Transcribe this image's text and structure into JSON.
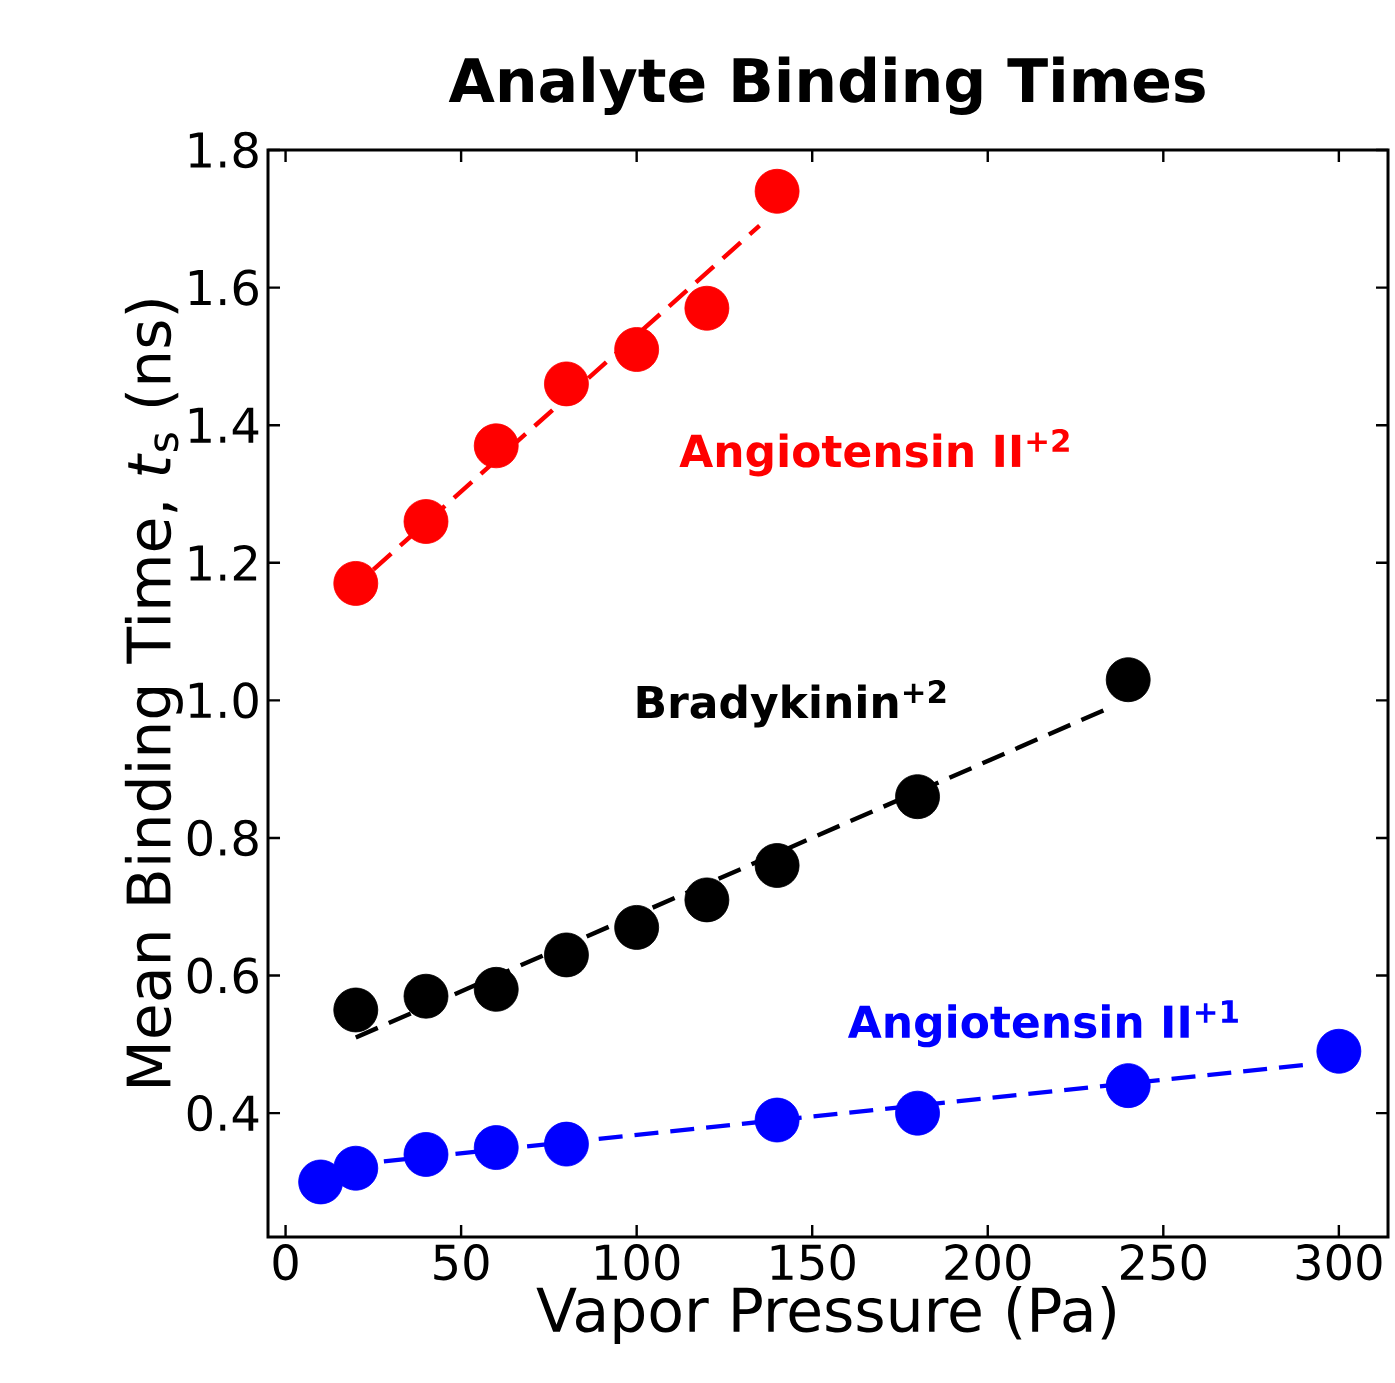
{
  "chart_data": {
    "type": "scatter",
    "title": "Analyte Binding Times",
    "xlabel": "Vapor Pressure (Pa)",
    "ylabel": "Mean Binding Time, *t*$_{s}$ (ns)",
    "xlim": [
      -5,
      314
    ],
    "ylim": [
      0.22,
      1.8
    ],
    "xticks": [
      0,
      50,
      100,
      150,
      200,
      250,
      300
    ],
    "yticks": [
      0.4,
      0.6,
      0.8,
      {
        "value": 1.0,
        "label": "1.0"
      },
      1.2,
      1.4,
      1.6,
      1.8
    ],
    "grid": false,
    "legend": false,
    "series": [
      {
        "name": "Angiotensin II$^{+2}$",
        "marker": "circle",
        "color": "#ff0000",
        "x": [
          20,
          40,
          60,
          80,
          100,
          120,
          140
        ],
        "values": [
          1.17,
          1.26,
          1.37,
          1.46,
          1.51,
          1.57,
          1.74
        ]
      },
      {
        "name": "Bradykinin$^{+2}$",
        "marker": "circle",
        "color": "#000000",
        "x": [
          20,
          40,
          60,
          80,
          100,
          120,
          140,
          180,
          240
        ],
        "values": [
          0.55,
          0.57,
          0.58,
          0.63,
          0.67,
          0.71,
          0.76,
          0.86,
          1.03
        ]
      },
      {
        "name": "Angiotensin II$^{+1}$",
        "marker": "circle",
        "color": "#0000ff",
        "x": [
          10,
          20,
          40,
          60,
          80,
          140,
          180,
          240,
          300
        ],
        "values": [
          0.3,
          0.32,
          0.34,
          0.35,
          0.355,
          0.39,
          0.4,
          0.44,
          0.49
        ]
      },
      {
        "type": "line",
        "line_style": "dashed",
        "marker": "none",
        "color": "#ff0000",
        "x": [
          25,
          135
        ],
        "values": [
          1.19,
          1.69
        ]
      },
      {
        "type": "line",
        "line_style": "dashed",
        "marker": "none",
        "color": "#000000",
        "x": [
          20,
          235
        ],
        "values": [
          0.51,
          0.99
        ]
      },
      {
        "type": "line",
        "line_style": "dashed",
        "marker": "none",
        "color": "#0000ff",
        "x": [
          28,
          290
        ],
        "values": [
          0.33,
          0.47
        ]
      }
    ]
  }
}
